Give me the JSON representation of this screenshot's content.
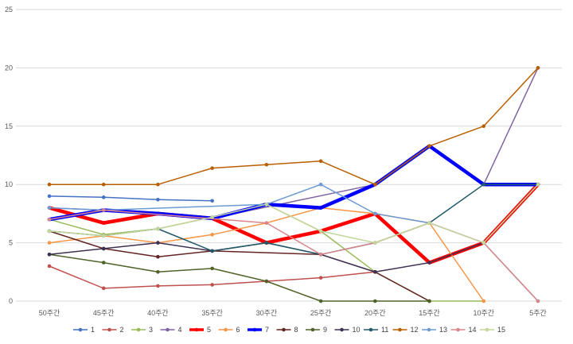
{
  "chart_data": {
    "type": "line",
    "title": "",
    "xlabel": "",
    "ylabel": "",
    "ylim": [
      0,
      25
    ],
    "y_ticks": [
      0,
      5,
      10,
      15,
      20,
      25
    ],
    "grid": "horizontal",
    "legend_position": "bottom",
    "categories": [
      "50주간",
      "45주간",
      "40주간",
      "35주간",
      "30주간",
      "25주간",
      "20주간",
      "15주간",
      "10주간",
      "5주간"
    ],
    "series": [
      {
        "name": "1",
        "color": "#4472C4",
        "width": 1.5,
        "values": [
          9.0,
          8.9,
          8.7,
          8.6,
          null,
          null,
          null,
          null,
          null,
          null
        ]
      },
      {
        "name": "2",
        "color": "#C0504D",
        "width": 1.5,
        "values": [
          3.0,
          1.1,
          1.3,
          1.4,
          1.7,
          2.0,
          2.5,
          null,
          null,
          null
        ]
      },
      {
        "name": "3",
        "color": "#9BBB59",
        "width": 1.5,
        "values": [
          7.0,
          5.7,
          6.2,
          7.2,
          8.3,
          6.0,
          2.5,
          0.0,
          0.0,
          null
        ]
      },
      {
        "name": "4",
        "color": "#8064A2",
        "width": 1.5,
        "values": [
          8.0,
          7.8,
          7.5,
          7.1,
          null,
          null,
          10.0,
          13.3,
          10.0,
          20.0
        ]
      },
      {
        "name": "5",
        "color": "#FF0000",
        "width": 4.5,
        "values": [
          8.0,
          6.7,
          7.5,
          7.1,
          5.0,
          6.0,
          7.5,
          3.3,
          5.0,
          10.0
        ]
      },
      {
        "name": "6",
        "color": "#F79646",
        "width": 1.5,
        "values": [
          5.0,
          5.6,
          5.0,
          5.7,
          6.7,
          8.0,
          7.5,
          6.7,
          0.0,
          null
        ]
      },
      {
        "name": "7",
        "color": "#0000FF",
        "width": 4.5,
        "values": [
          7.0,
          7.8,
          7.5,
          7.1,
          8.3,
          8.0,
          10.0,
          13.3,
          10.0,
          10.0
        ]
      },
      {
        "name": "8",
        "color": "#632423",
        "width": 1.5,
        "values": [
          6.0,
          4.5,
          3.8,
          4.3,
          null,
          4.0,
          2.5,
          0.0,
          null,
          null
        ]
      },
      {
        "name": "9",
        "color": "#4F6228",
        "width": 1.5,
        "values": [
          4.0,
          3.3,
          2.5,
          2.8,
          1.7,
          0.0,
          0.0,
          0.0,
          null,
          null
        ]
      },
      {
        "name": "10",
        "color": "#3F3151",
        "width": 1.5,
        "values": [
          4.0,
          4.5,
          5.0,
          4.3,
          5.0,
          4.0,
          2.5,
          3.3,
          5.0,
          10.0
        ]
      },
      {
        "name": "11",
        "color": "#215968",
        "width": 1.5,
        "values": [
          6.0,
          5.6,
          6.2,
          4.3,
          5.0,
          4.0,
          5.0,
          6.7,
          10.0,
          10.0
        ]
      },
      {
        "name": "12",
        "color": "#B85F00",
        "width": 1.5,
        "values": [
          10.0,
          10.0,
          10.0,
          11.4,
          11.7,
          12.0,
          10.0,
          13.3,
          15.0,
          20.0
        ]
      },
      {
        "name": "13",
        "color": "#6C9BD2",
        "width": 1.5,
        "values": [
          8.0,
          7.8,
          null,
          null,
          8.3,
          10.0,
          7.5,
          6.7,
          5.0,
          0.0
        ]
      },
      {
        "name": "14",
        "color": "#D9868A",
        "width": 1.5,
        "values": [
          7.0,
          7.8,
          null,
          null,
          6.7,
          4.0,
          5.0,
          6.7,
          5.0,
          0.0
        ]
      },
      {
        "name": "15",
        "color": "#C3D69B",
        "width": 1.5,
        "values": [
          6.0,
          5.6,
          6.2,
          7.2,
          8.3,
          6.0,
          5.0,
          6.7,
          5.0,
          10.0
        ]
      }
    ]
  }
}
